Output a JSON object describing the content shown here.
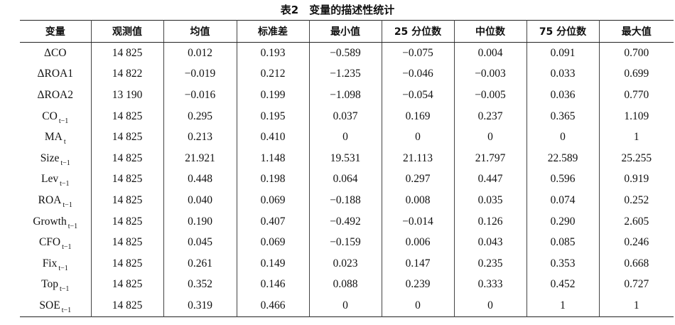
{
  "caption": "表2　变量的描述性统计",
  "columns": [
    "变量",
    "观测值",
    "均值",
    "标准差",
    "最小值",
    "25 分位数",
    "中位数",
    "75 分位数",
    "最大值"
  ],
  "rows": [
    {
      "var": "ΔCO",
      "sub": "",
      "values": [
        "14 825",
        "0.012",
        "0.193",
        "−0.589",
        "−0.075",
        "0.004",
        "0.091",
        "0.700"
      ]
    },
    {
      "var": "ΔROA1",
      "sub": "",
      "values": [
        "14 822",
        "−0.019",
        "0.212",
        "−1.235",
        "−0.046",
        "−0.003",
        "0.033",
        "0.699"
      ]
    },
    {
      "var": "ΔROA2",
      "sub": "",
      "values": [
        "13 190",
        "−0.016",
        "0.199",
        "−1.098",
        "−0.054",
        "−0.005",
        "0.036",
        "0.770"
      ]
    },
    {
      "var": "CO",
      "sub": "t−1",
      "values": [
        "14 825",
        "0.295",
        "0.195",
        "0.037",
        "0.169",
        "0.237",
        "0.365",
        "1.109"
      ]
    },
    {
      "var": "MA",
      "sub": "t",
      "values": [
        "14 825",
        "0.213",
        "0.410",
        "0",
        "0",
        "0",
        "0",
        "1"
      ]
    },
    {
      "var": "Size",
      "sub": "t−1",
      "values": [
        "14 825",
        "21.921",
        "1.148",
        "19.531",
        "21.113",
        "21.797",
        "22.589",
        "25.255"
      ]
    },
    {
      "var": "Lev",
      "sub": "t−1",
      "values": [
        "14 825",
        "0.448",
        "0.198",
        "0.064",
        "0.297",
        "0.447",
        "0.596",
        "0.919"
      ]
    },
    {
      "var": "ROA",
      "sub": "t−1",
      "values": [
        "14 825",
        "0.040",
        "0.069",
        "−0.188",
        "0.008",
        "0.035",
        "0.074",
        "0.252"
      ]
    },
    {
      "var": "Growth",
      "sub": "t−1",
      "values": [
        "14 825",
        "0.190",
        "0.407",
        "−0.492",
        "−0.014",
        "0.126",
        "0.290",
        "2.605"
      ]
    },
    {
      "var": "CFO",
      "sub": "t−1",
      "values": [
        "14 825",
        "0.045",
        "0.069",
        "−0.159",
        "0.006",
        "0.043",
        "0.085",
        "0.246"
      ]
    },
    {
      "var": "Fix",
      "sub": "t−1",
      "values": [
        "14 825",
        "0.261",
        "0.149",
        "0.023",
        "0.147",
        "0.235",
        "0.353",
        "0.668"
      ]
    },
    {
      "var": "Top",
      "sub": "t−1",
      "values": [
        "14 825",
        "0.352",
        "0.146",
        "0.088",
        "0.239",
        "0.333",
        "0.452",
        "0.727"
      ]
    },
    {
      "var": "SOE",
      "sub": "t−1",
      "values": [
        "14 825",
        "0.319",
        "0.466",
        "0",
        "0",
        "0",
        "1",
        "1"
      ]
    }
  ]
}
